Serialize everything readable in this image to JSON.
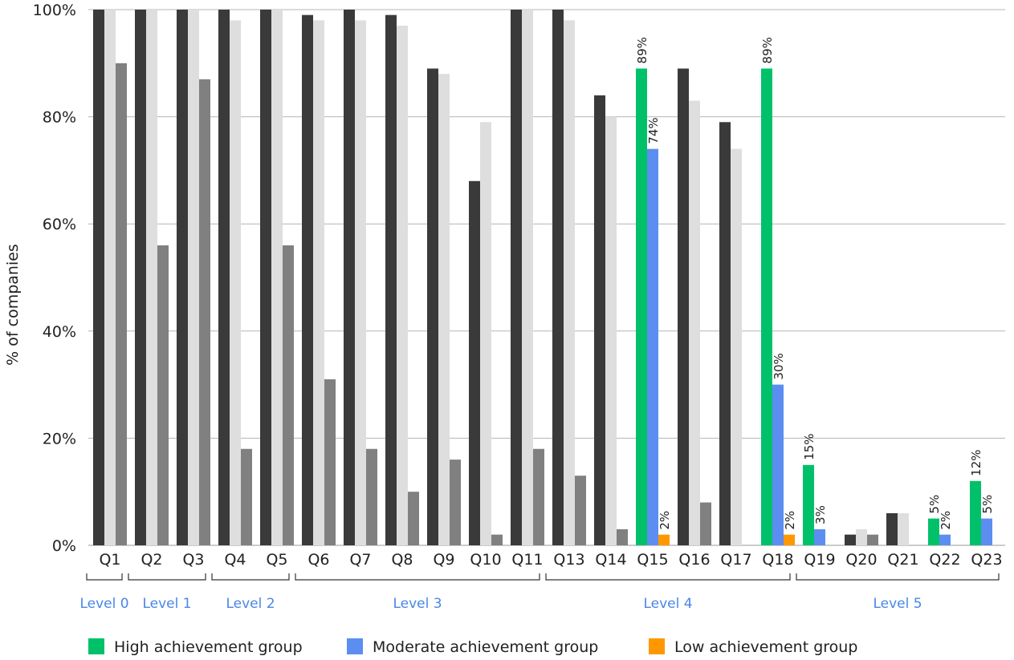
{
  "chart_data": {
    "type": "bar",
    "ylabel": "% of companies",
    "ylim": [
      0,
      100
    ],
    "yticks": [
      "0%",
      "20%",
      "40%",
      "60%",
      "80%",
      "100%"
    ],
    "grid": true,
    "legend_position": "bottom",
    "colors": {
      "high": "#00c16a",
      "moderate": "#5b8ef0",
      "low": "#ff9800",
      "dark": "#3a3a3a",
      "light": "#dedede",
      "mid": "#808080",
      "level_label": "#4a86e8"
    },
    "categories": [
      "Q1",
      "Q2",
      "Q3",
      "Q4",
      "Q5",
      "Q6",
      "Q7",
      "Q8",
      "Q9",
      "Q10",
      "Q11",
      "Q13",
      "Q14",
      "Q15",
      "Q16",
      "Q17",
      "Q18",
      "Q19",
      "Q20",
      "Q21",
      "Q22",
      "Q23"
    ],
    "series": [
      {
        "name": "High achievement group",
        "key": "high",
        "values": [
          100,
          100,
          100,
          100,
          100,
          99,
          100,
          99,
          89,
          68,
          100,
          100,
          84,
          89,
          89,
          79,
          89,
          15,
          2,
          6,
          5,
          12
        ]
      },
      {
        "name": "Moderate achievement group",
        "key": "moderate",
        "values": [
          100,
          100,
          100,
          98,
          100,
          98,
          98,
          97,
          88,
          79,
          100,
          98,
          80,
          74,
          83,
          74,
          30,
          3,
          3,
          6,
          2,
          5
        ]
      },
      {
        "name": "Low achievement group",
        "key": "low",
        "values": [
          90,
          56,
          87,
          18,
          56,
          31,
          18,
          10,
          16,
          2,
          18,
          13,
          3,
          2,
          8,
          0,
          2,
          0,
          2,
          0,
          0,
          0
        ]
      }
    ],
    "highlighted": [
      {
        "category": "Q15",
        "labels": [
          "89%",
          "74%",
          "2%"
        ]
      },
      {
        "category": "Q18",
        "labels": [
          "89%",
          "30%",
          "2%"
        ]
      },
      {
        "category": "Q19",
        "labels": [
          "15%",
          "3%",
          null
        ]
      },
      {
        "category": "Q22",
        "labels": [
          "5%",
          "2%",
          null
        ]
      },
      {
        "category": "Q23",
        "labels": [
          "12%",
          "5%",
          null
        ]
      }
    ],
    "levels": [
      {
        "label": "Level 0",
        "from": "Q1",
        "to": "Q1"
      },
      {
        "label": "Level 1",
        "from": "Q2",
        "to": "Q3"
      },
      {
        "label": "Level 2",
        "from": "Q4",
        "to": "Q5"
      },
      {
        "label": "Level 3",
        "from": "Q6",
        "to": "Q11"
      },
      {
        "label": "Level 4",
        "from": "Q13",
        "to": "Q18"
      },
      {
        "label": "Level 5",
        "from": "Q19",
        "to": "Q23"
      }
    ]
  }
}
